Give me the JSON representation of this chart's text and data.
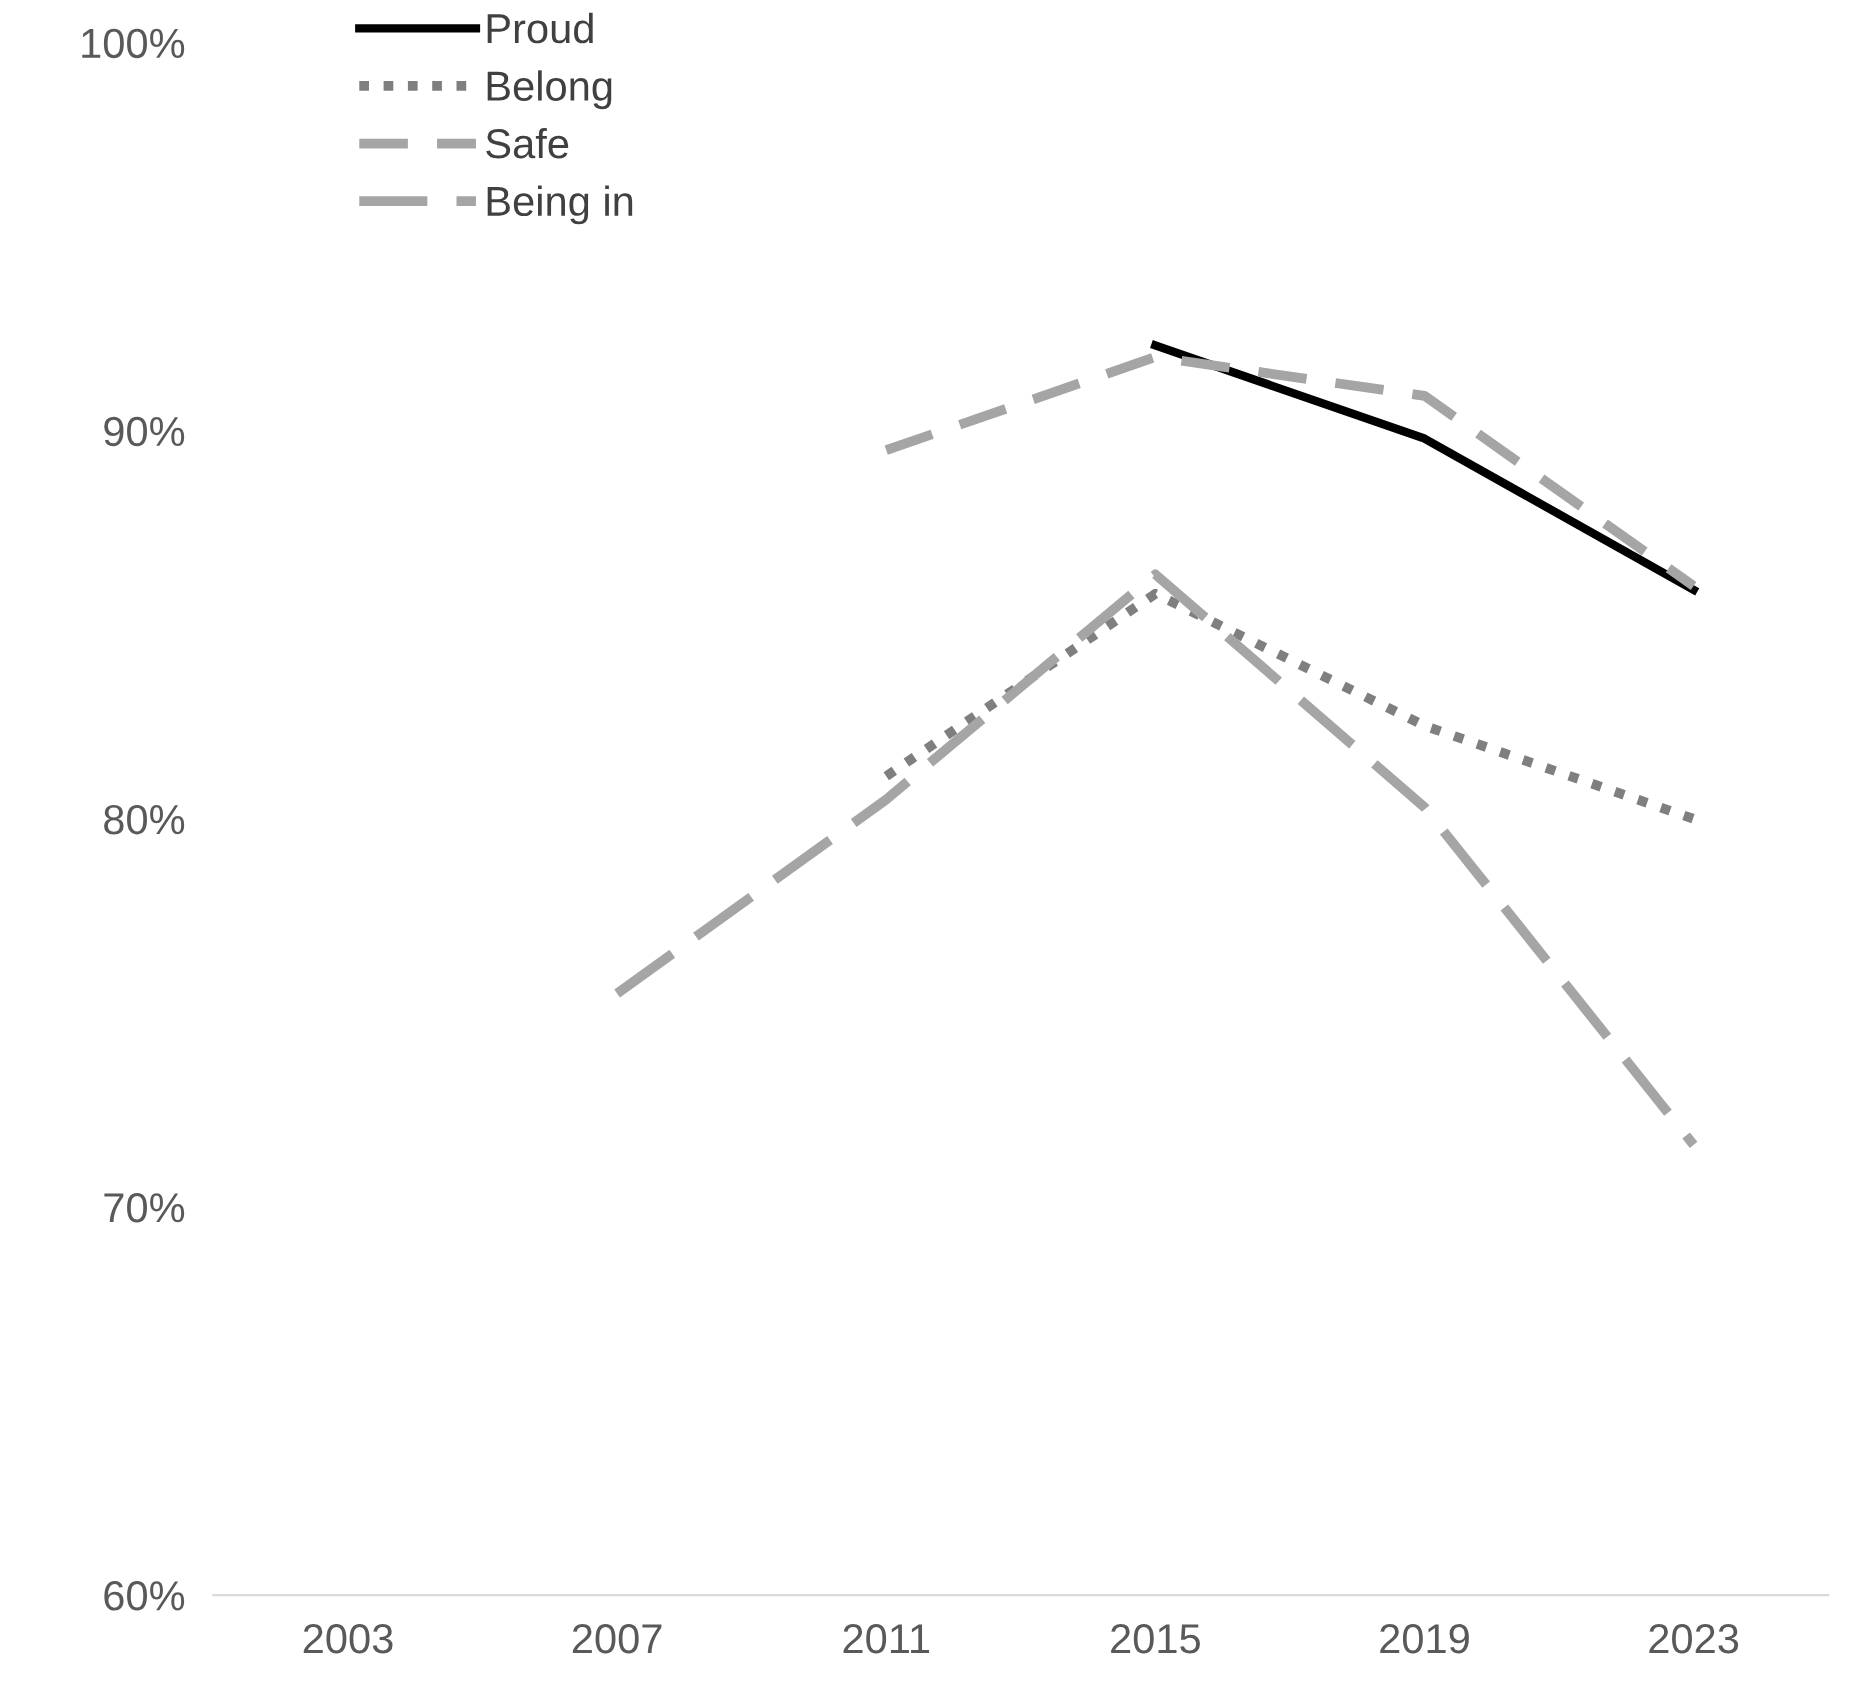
{
  "chart_data": {
    "type": "line",
    "categories": [
      "2003",
      "2007",
      "2011",
      "2015",
      "2019",
      "2023"
    ],
    "series": [
      {
        "name": "Proud",
        "color": "#000000",
        "line_style": "solid",
        "values": [
          null,
          null,
          null,
          92.2,
          89.8,
          85.9
        ]
      },
      {
        "name": "Belong",
        "color": "#7f7f7f",
        "line_style": "dotted",
        "values": [
          null,
          null,
          81.1,
          85.8,
          82.4,
          80.0
        ]
      },
      {
        "name": "Safe",
        "color": "#a5a5a5",
        "line_style": "dashed",
        "values": [
          null,
          null,
          89.5,
          91.9,
          90.9,
          86.0
        ]
      },
      {
        "name": "Being in",
        "color": "#a5a5a5",
        "line_style": "dashed",
        "values": [
          null,
          75.5,
          80.5,
          86.3,
          80.3,
          71.6
        ]
      }
    ],
    "ylim": [
      60,
      100
    ],
    "yticks": [
      {
        "value": 60,
        "label": "60%"
      },
      {
        "value": 70,
        "label": "70%"
      },
      {
        "value": 80,
        "label": "80%"
      },
      {
        "value": 90,
        "label": "90%"
      },
      {
        "value": 100,
        "label": "100%"
      }
    ],
    "grid": false,
    "legend": "top left",
    "marker": "none"
  }
}
